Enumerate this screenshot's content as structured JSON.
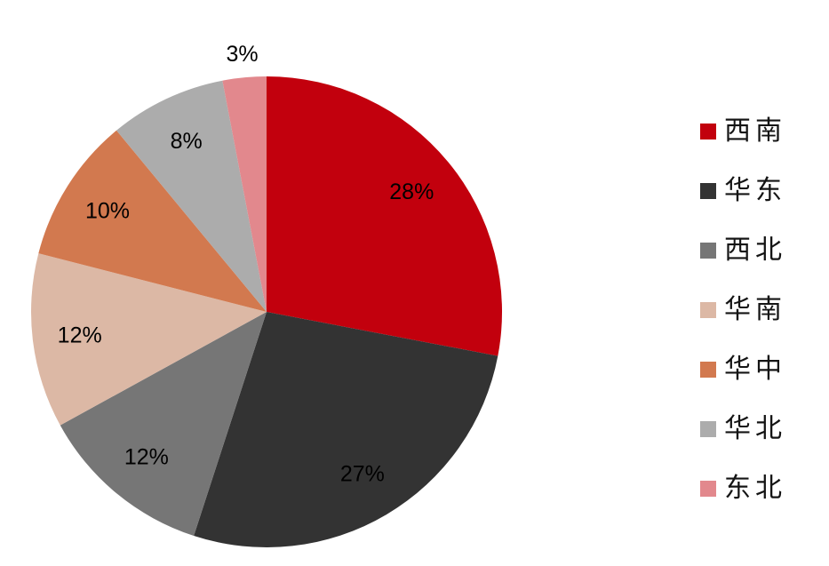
{
  "background_color": "#ffffff",
  "chart_data": {
    "type": "pie",
    "title": "",
    "categories": [
      "西南",
      "华东",
      "西北",
      "华南",
      "华中",
      "华北",
      "东北"
    ],
    "values": [
      28,
      27,
      12,
      12,
      10,
      8,
      3
    ],
    "data_labels": [
      "28%",
      "27%",
      "12%",
      "12%",
      "10%",
      "8%",
      "3%"
    ],
    "colors": [
      "#C2000D",
      "#333333",
      "#767676",
      "#DCB8A5",
      "#D2794F",
      "#ACACAC",
      "#E2888D"
    ],
    "label_color": "#000000",
    "legend_position": "right",
    "start_angle_deg": 0,
    "direction": "clockwise",
    "outside_label_threshold_pct": 5
  }
}
